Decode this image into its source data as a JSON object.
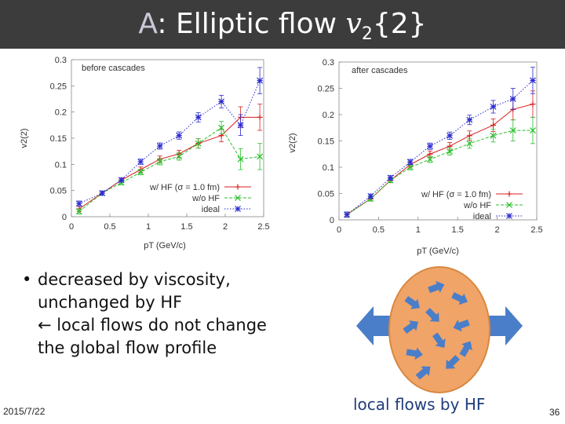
{
  "slide": {
    "title_prefix": "A",
    "title_main": ": Elliptic flow ",
    "title_v": "v",
    "title_sub": "2",
    "title_braces": "{2}",
    "bullet_symbol": "•",
    "bullet_line1": "decreased by viscosity,",
    "bullet_line2": "unchanged by HF",
    "bullet_line3": "← local flows do not change",
    "bullet_line4": "the global flow profile",
    "hf_label": "local flows by HF",
    "date": "2015/7/22",
    "page": "36"
  },
  "colors": {
    "title_bg": "#3c3c3c",
    "ellipse_fill": "#f0a468",
    "arrow_fill": "#4a7ec8",
    "series_red": "#d81f1f",
    "series_green": "#2bbf2b",
    "series_blue": "#2a2ad0"
  },
  "chart_data": [
    {
      "type": "line",
      "title": "before cascades",
      "xlabel": "pT (GeV/c)",
      "ylabel": "v2(2)",
      "xlim": [
        0,
        2.5
      ],
      "ylim": [
        0,
        0.3
      ],
      "xticks": [
        "0",
        "0.5",
        "1",
        "1.5",
        "2",
        "2.5"
      ],
      "yticks": [
        "0",
        "0.05",
        "0.1",
        "0.15",
        "0.2",
        "0.25",
        "0.3"
      ],
      "legend_position": "bottom-right",
      "series": [
        {
          "name": "w/ HF (σ = 1.0 fm)",
          "color": "#d81f1f",
          "dash": "solid",
          "x": [
            0.1,
            0.4,
            0.65,
            0.9,
            1.15,
            1.4,
            1.65,
            1.95,
            2.2,
            2.45
          ],
          "y": [
            0.015,
            0.045,
            0.07,
            0.09,
            0.11,
            0.12,
            0.14,
            0.155,
            0.19,
            0.19
          ],
          "err": [
            0.005,
            0.004,
            0.004,
            0.005,
            0.006,
            0.007,
            0.009,
            0.012,
            0.02,
            0.025
          ]
        },
        {
          "name": "w/o HF",
          "color": "#2bbf2b",
          "dash": "dashed",
          "x": [
            0.1,
            0.4,
            0.65,
            0.9,
            1.15,
            1.4,
            1.65,
            1.95,
            2.2,
            2.45
          ],
          "y": [
            0.01,
            0.045,
            0.065,
            0.085,
            0.105,
            0.115,
            0.14,
            0.17,
            0.11,
            0.115
          ],
          "err": [
            0.005,
            0.004,
            0.004,
            0.005,
            0.006,
            0.007,
            0.009,
            0.012,
            0.02,
            0.025
          ]
        },
        {
          "name": "ideal",
          "color": "#2a2ad0",
          "dash": "dotted",
          "x": [
            0.1,
            0.4,
            0.65,
            0.9,
            1.15,
            1.4,
            1.65,
            1.95,
            2.2,
            2.45
          ],
          "y": [
            0.025,
            0.045,
            0.07,
            0.105,
            0.135,
            0.155,
            0.19,
            0.22,
            0.175,
            0.26
          ],
          "err": [
            0.005,
            0.004,
            0.004,
            0.005,
            0.006,
            0.007,
            0.009,
            0.012,
            0.02,
            0.025
          ]
        }
      ]
    },
    {
      "type": "line",
      "title": "after cascades",
      "xlabel": "pT (GeV/c)",
      "ylabel": "v2(2)",
      "xlim": [
        0,
        2.5
      ],
      "ylim": [
        0,
        0.3
      ],
      "xticks": [
        "0",
        "0.5",
        "1",
        "1.5",
        "2",
        "2.5"
      ],
      "yticks": [
        "0",
        "0.05",
        "0.1",
        "0.15",
        "0.2",
        "0.25",
        "0.3"
      ],
      "legend_position": "bottom-right",
      "series": [
        {
          "name": "w/ HF (σ = 1.0 fm)",
          "color": "#d81f1f",
          "dash": "solid",
          "x": [
            0.1,
            0.4,
            0.65,
            0.9,
            1.15,
            1.4,
            1.65,
            1.95,
            2.2,
            2.45
          ],
          "y": [
            0.01,
            0.04,
            0.075,
            0.105,
            0.125,
            0.14,
            0.16,
            0.18,
            0.21,
            0.22
          ],
          "err": [
            0.005,
            0.004,
            0.004,
            0.005,
            0.006,
            0.007,
            0.009,
            0.012,
            0.02,
            0.025
          ]
        },
        {
          "name": "w/o HF",
          "color": "#2bbf2b",
          "dash": "dashed",
          "x": [
            0.1,
            0.4,
            0.65,
            0.9,
            1.15,
            1.4,
            1.65,
            1.95,
            2.2,
            2.45
          ],
          "y": [
            0.01,
            0.04,
            0.075,
            0.1,
            0.115,
            0.13,
            0.145,
            0.16,
            0.17,
            0.17
          ],
          "err": [
            0.005,
            0.004,
            0.004,
            0.005,
            0.006,
            0.007,
            0.009,
            0.012,
            0.02,
            0.025
          ]
        },
        {
          "name": "ideal",
          "color": "#2a2ad0",
          "dash": "dotted",
          "x": [
            0.1,
            0.4,
            0.65,
            0.9,
            1.15,
            1.4,
            1.65,
            1.95,
            2.2,
            2.45
          ],
          "y": [
            0.01,
            0.045,
            0.08,
            0.11,
            0.14,
            0.16,
            0.19,
            0.215,
            0.23,
            0.265
          ],
          "err": [
            0.005,
            0.004,
            0.004,
            0.005,
            0.006,
            0.007,
            0.009,
            0.012,
            0.02,
            0.025
          ]
        }
      ]
    }
  ]
}
